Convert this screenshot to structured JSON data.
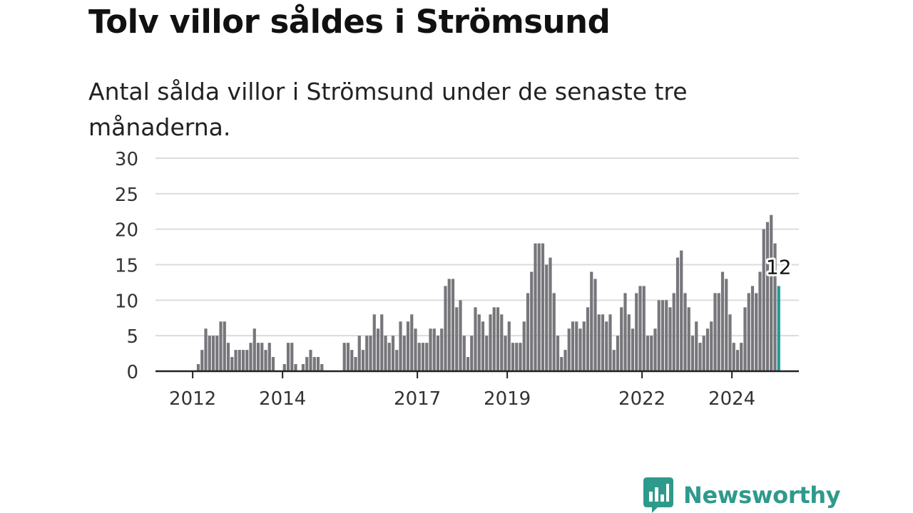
{
  "title": "Tolv villor såldes i Strömsund",
  "subtitle": "Antal sålda villor i Strömsund under de senaste tre månaderna.",
  "brand": {
    "name": "Newsworthy",
    "icon": "bar-chart-speech-bubble-icon",
    "color": "#2e9a8c"
  },
  "chart_data": {
    "type": "bar",
    "title": "Tolv villor såldes i Strömsund",
    "subtitle": "Antal sålda villor i Strömsund under de senaste tre månaderna.",
    "xlabel": "",
    "ylabel": "",
    "ylim": [
      0,
      30
    ],
    "yticks": [
      0,
      5,
      10,
      15,
      20,
      25,
      30
    ],
    "xtick_labels": [
      "2012",
      "2014",
      "2017",
      "2019",
      "2022",
      "2024"
    ],
    "x_start": "2011-04",
    "x_interval": "month",
    "grid": true,
    "bar_color": "#76767b",
    "highlight_color": "#1a9e96",
    "highlight_label": "12",
    "values": [
      0,
      0,
      0,
      0,
      0,
      0,
      0,
      0,
      0,
      0,
      1,
      3,
      6,
      5,
      5,
      5,
      7,
      7,
      4,
      2,
      3,
      3,
      3,
      3,
      4,
      6,
      4,
      4,
      3,
      4,
      2,
      0,
      0,
      1,
      4,
      4,
      1,
      0,
      1,
      2,
      3,
      2,
      2,
      1,
      0,
      0,
      0,
      0,
      0,
      4,
      4,
      3,
      2,
      5,
      3,
      5,
      5,
      8,
      6,
      8,
      5,
      4,
      5,
      3,
      7,
      5,
      7,
      8,
      6,
      4,
      4,
      4,
      6,
      6,
      5,
      6,
      12,
      13,
      13,
      9,
      10,
      5,
      2,
      5,
      9,
      8,
      7,
      5,
      8,
      9,
      9,
      8,
      5,
      7,
      4,
      4,
      4,
      7,
      11,
      14,
      18,
      18,
      18,
      15,
      16,
      11,
      5,
      2,
      3,
      6,
      7,
      7,
      6,
      7,
      9,
      14,
      13,
      8,
      8,
      7,
      8,
      3,
      5,
      9,
      11,
      8,
      6,
      11,
      12,
      12,
      5,
      5,
      6,
      10,
      10,
      10,
      9,
      11,
      16,
      17,
      11,
      9,
      5,
      7,
      4,
      5,
      6,
      7,
      11,
      11,
      14,
      13,
      8,
      4,
      3,
      4,
      9,
      11,
      12,
      11,
      14,
      20,
      21,
      22,
      18,
      12
    ]
  }
}
